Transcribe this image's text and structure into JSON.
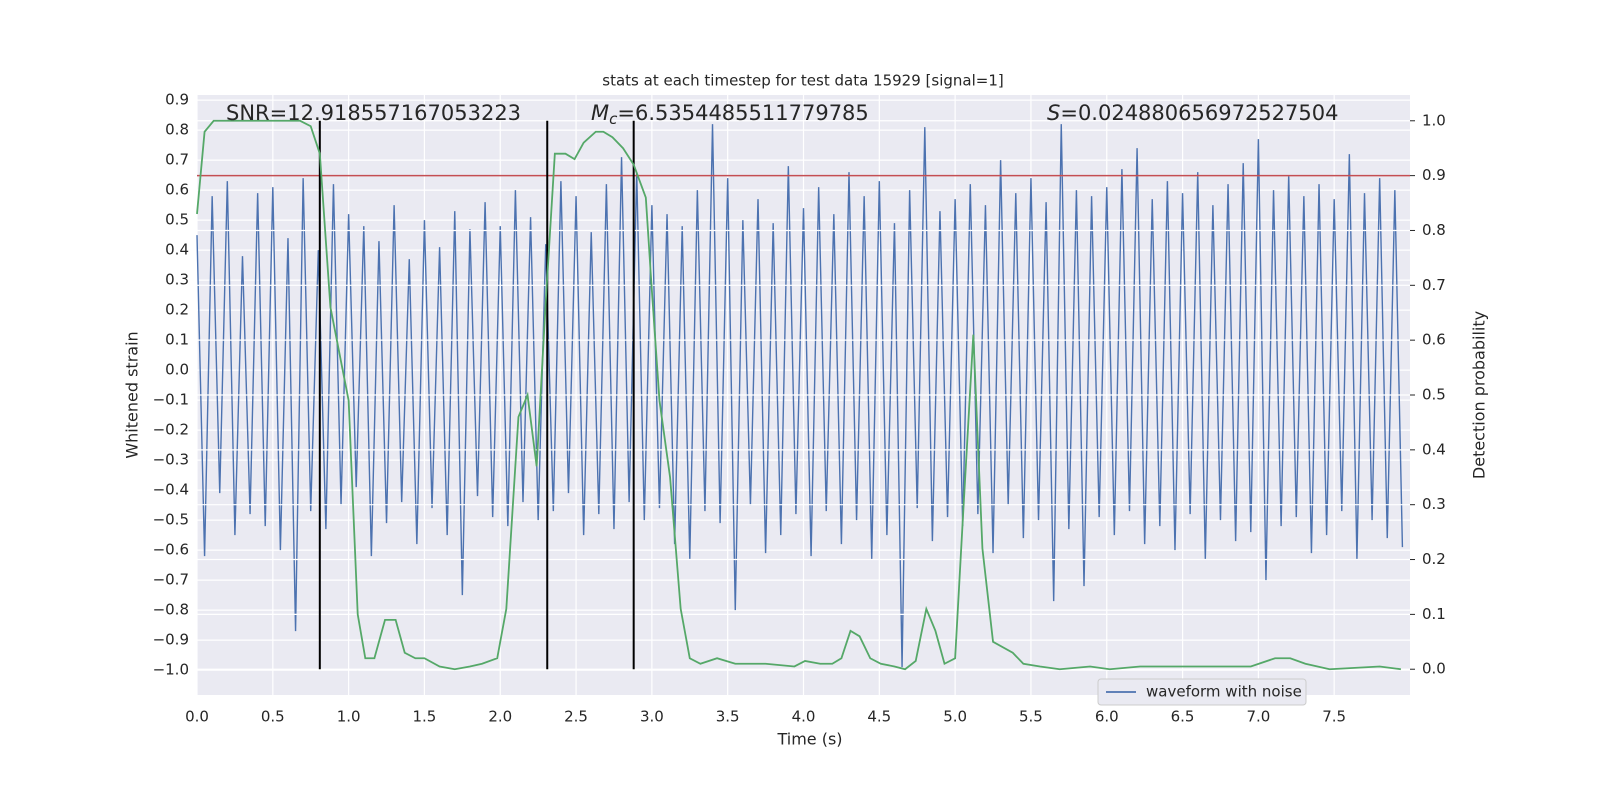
{
  "chart_data": {
    "type": "line",
    "title": "stats at each timestep for test data 15929 [signal=1]",
    "xlabel": "Time (s)",
    "ylabel": "Whitened strain",
    "y2label": "Detection probability",
    "xlim": [
      0,
      8.0
    ],
    "ylim": [
      -1.083,
      0.917
    ],
    "y2lim": [
      -0.047,
      1.047
    ],
    "xticks": [
      {
        "value": 0,
        "label": "0.0"
      },
      0.5,
      {
        "value": 1,
        "label": "1.0"
      },
      1.5,
      {
        "value": 2,
        "label": "2.0"
      },
      2.5,
      {
        "value": 3,
        "label": "3.0"
      },
      3.5,
      {
        "value": 4,
        "label": "4.0"
      },
      4.5,
      {
        "value": 5,
        "label": "5.0"
      },
      5.5,
      {
        "value": 6,
        "label": "6.0"
      },
      6.5,
      {
        "value": 7,
        "label": "7.0"
      },
      7.5
    ],
    "yticks": [
      0.9,
      0.8,
      0.7,
      0.6,
      0.5,
      0.4,
      0.3,
      0.2,
      0.1,
      {
        "value": 0,
        "label": "0.0"
      },
      {
        "value": -0.1,
        "label": "−0.1"
      },
      {
        "value": -0.2,
        "label": "−0.2"
      },
      {
        "value": -0.3,
        "label": "−0.3"
      },
      {
        "value": -0.4,
        "label": "−0.4"
      },
      {
        "value": -0.5,
        "label": "−0.5"
      },
      {
        "value": -0.6,
        "label": "−0.6"
      },
      {
        "value": -0.7,
        "label": "−0.7"
      },
      {
        "value": -0.8,
        "label": "−0.8"
      },
      {
        "value": -0.9,
        "label": "−0.9"
      },
      {
        "value": -1,
        "label": "−1.0"
      }
    ],
    "y2ticks": [
      {
        "value": 0,
        "label": "0.0"
      },
      0.1,
      0.2,
      0.3,
      0.4,
      0.5,
      0.6,
      0.7,
      0.8,
      0.9,
      {
        "value": 1,
        "label": "1.0"
      }
    ],
    "grid": true,
    "legend": "lower right",
    "annotations": [
      {
        "text": "SNR=12.918557167053223"
      },
      {
        "symbol": "M",
        "subscript": "c",
        "text": "=6.5354485511779785"
      },
      {
        "symbol": "S",
        "text": "=0.024880656972527504"
      }
    ],
    "hlines": [
      {
        "value": 0.9,
        "axis": "y2",
        "color": "#c44e52"
      }
    ],
    "vlines": [
      {
        "x": 0.81,
        "y2": [
          0,
          1
        ],
        "color": "#000000"
      },
      {
        "x": 2.31,
        "y2": [
          0,
          1
        ],
        "color": "#000000"
      },
      {
        "x": 2.88,
        "y2": [
          0,
          1
        ],
        "color": "#000000"
      }
    ],
    "series": [
      {
        "name": "waveform with noise",
        "color": "#4c72b0",
        "axis": "y",
        "x": [
          0,
          0.05,
          0.1,
          0.15,
          0.2,
          0.25,
          0.3,
          0.35,
          0.4,
          0.45,
          0.5,
          0.55,
          0.6,
          0.65,
          0.7,
          0.75,
          0.8,
          0.85,
          0.9,
          0.95,
          1,
          1.05,
          1.1,
          1.15,
          1.2,
          1.25,
          1.3,
          1.35,
          1.4,
          1.45,
          1.5,
          1.55,
          1.6,
          1.65,
          1.7,
          1.75,
          1.8,
          1.85,
          1.9,
          1.95,
          2,
          2.05,
          2.1,
          2.15,
          2.2,
          2.25,
          2.3,
          2.35,
          2.4,
          2.45,
          2.5,
          2.55,
          2.6,
          2.65,
          2.7,
          2.75,
          2.8,
          2.85,
          2.9,
          2.95,
          3,
          3.05,
          3.1,
          3.15,
          3.2,
          3.25,
          3.3,
          3.35,
          3.4,
          3.45,
          3.5,
          3.55,
          3.6,
          3.65,
          3.7,
          3.75,
          3.8,
          3.85,
          3.9,
          3.95,
          4,
          4.05,
          4.1,
          4.15,
          4.2,
          4.25,
          4.3,
          4.35,
          4.4,
          4.45,
          4.5,
          4.55,
          4.6,
          4.65,
          4.7,
          4.75,
          4.8,
          4.85,
          4.9,
          4.95,
          5,
          5.05,
          5.1,
          5.15,
          5.2,
          5.25,
          5.3,
          5.35,
          5.4,
          5.45,
          5.5,
          5.55,
          5.6,
          5.65,
          5.7,
          5.75,
          5.8,
          5.85,
          5.9,
          5.95,
          6,
          6.05,
          6.1,
          6.15,
          6.2,
          6.25,
          6.3,
          6.35,
          6.4,
          6.45,
          6.5,
          6.55,
          6.6,
          6.65,
          6.7,
          6.75,
          6.8,
          6.85,
          6.9,
          6.95,
          7,
          7.05,
          7.1,
          7.15,
          7.2,
          7.25,
          7.3,
          7.35,
          7.4,
          7.45,
          7.5,
          7.55,
          7.6,
          7.65,
          7.7,
          7.75,
          7.8,
          7.85,
          7.9,
          7.95
        ],
        "values": [
          0.45,
          -0.62,
          0.58,
          -0.41,
          0.63,
          -0.55,
          0.38,
          -0.48,
          0.59,
          -0.52,
          0.61,
          -0.6,
          0.44,
          -0.87,
          0.64,
          -0.47,
          0.4,
          -0.53,
          0.62,
          -0.45,
          0.52,
          -0.39,
          0.48,
          -0.62,
          0.43,
          -0.51,
          0.55,
          -0.44,
          0.37,
          -0.58,
          0.5,
          -0.46,
          0.41,
          -0.55,
          0.53,
          -0.75,
          0.47,
          -0.42,
          0.56,
          -0.49,
          0.48,
          -0.52,
          0.6,
          -0.44,
          0.51,
          -0.5,
          0.42,
          -0.47,
          0.63,
          -0.41,
          0.58,
          -0.55,
          0.46,
          -0.48,
          0.62,
          -0.53,
          0.71,
          -0.44,
          0.66,
          -0.5,
          0.55,
          -0.46,
          0.52,
          -0.58,
          0.48,
          -0.63,
          0.6,
          -0.47,
          0.82,
          -0.51,
          0.64,
          -0.8,
          0.5,
          -0.45,
          0.57,
          -0.61,
          0.49,
          -0.55,
          0.68,
          -0.48,
          0.54,
          -0.62,
          0.61,
          -0.47,
          0.52,
          -0.58,
          0.66,
          -0.5,
          0.58,
          -0.63,
          0.63,
          -0.55,
          0.49,
          -0.99,
          0.6,
          -0.46,
          0.81,
          -0.57,
          0.53,
          -0.49,
          0.57,
          -0.52,
          0.62,
          -0.48,
          0.55,
          -0.61,
          0.7,
          -0.45,
          0.59,
          -0.56,
          0.64,
          -0.5,
          0.56,
          -0.77,
          0.82,
          -0.53,
          0.6,
          -0.72,
          0.58,
          -0.49,
          0.61,
          -0.55,
          0.67,
          -0.47,
          0.74,
          -0.58,
          0.57,
          -0.52,
          0.63,
          -0.6,
          0.59,
          -0.48,
          0.66,
          -0.63,
          0.55,
          -0.5,
          0.62,
          -0.57,
          0.69,
          -0.54,
          0.77,
          -0.7,
          0.6,
          -0.52,
          0.65,
          -0.49,
          0.58,
          -0.61,
          0.62,
          -0.55,
          0.57,
          -0.47,
          0.72,
          -0.63,
          0.59,
          -0.5,
          0.64,
          -0.56,
          0.6,
          -0.59
        ]
      },
      {
        "color": "#55a868",
        "axis": "y2",
        "x": [
          0,
          0.05,
          0.11,
          0.68,
          0.75,
          0.81,
          0.88,
          1,
          1.06,
          1.11,
          1.17,
          1.24,
          1.31,
          1.37,
          1.44,
          1.5,
          1.6,
          1.7,
          1.8,
          1.88,
          1.98,
          2.04,
          2.12,
          2.18,
          2.24,
          2.3,
          2.36,
          2.43,
          2.49,
          2.55,
          2.63,
          2.68,
          2.74,
          2.81,
          2.88,
          2.96,
          3,
          3.05,
          3.12,
          3.19,
          3.25,
          3.32,
          3.43,
          3.55,
          3.75,
          3.94,
          4.01,
          4.11,
          4.19,
          4.25,
          4.31,
          4.37,
          4.44,
          4.51,
          4.6,
          4.67,
          4.74,
          4.81,
          4.87,
          4.93,
          5,
          5.05,
          5.12,
          5.18,
          5.25,
          5.38,
          5.45,
          5.56,
          5.69,
          5.89,
          6.02,
          6.22,
          6.35,
          6.55,
          6.75,
          6.95,
          7.11,
          7.21,
          7.31,
          7.47,
          7.8,
          7.94
        ],
        "values": [
          0.83,
          0.98,
          1,
          1,
          0.99,
          0.94,
          0.66,
          0.49,
          0.1,
          0.02,
          0.02,
          0.09,
          0.09,
          0.03,
          0.02,
          0.02,
          0.005,
          0,
          0.005,
          0.01,
          0.02,
          0.11,
          0.46,
          0.5,
          0.37,
          0.67,
          0.94,
          0.94,
          0.93,
          0.96,
          0.98,
          0.98,
          0.97,
          0.95,
          0.92,
          0.86,
          0.69,
          0.49,
          0.35,
          0.11,
          0.02,
          0.01,
          0.02,
          0.01,
          0.01,
          0.005,
          0.015,
          0.01,
          0.01,
          0.02,
          0.07,
          0.06,
          0.02,
          0.01,
          0.005,
          0,
          0.015,
          0.11,
          0.07,
          0.01,
          0.02,
          0.27,
          0.61,
          0.22,
          0.05,
          0.03,
          0.01,
          0.005,
          0,
          0.005,
          0,
          0.005,
          0.005,
          0.005,
          0.005,
          0.005,
          0.02,
          0.02,
          0.01,
          0,
          0.005,
          0
        ]
      }
    ]
  }
}
